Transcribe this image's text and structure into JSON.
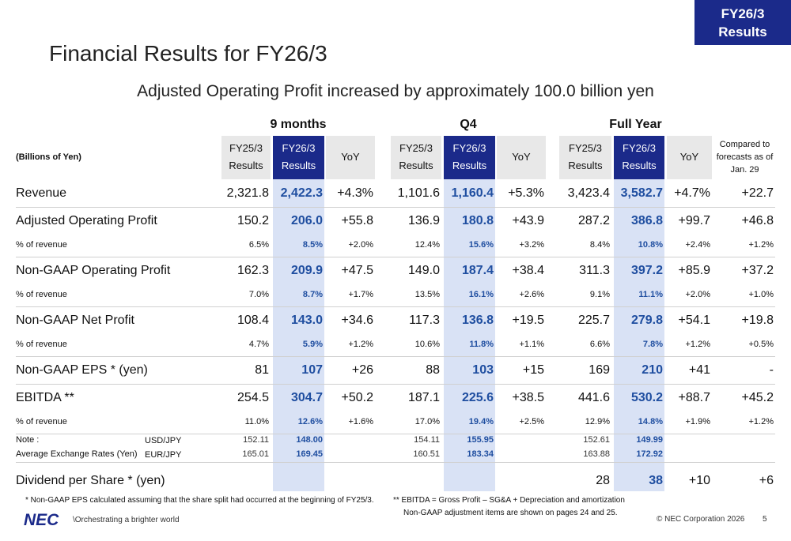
{
  "header": {
    "badge": [
      "FY26/3",
      "Results"
    ],
    "title": "Financial Results for FY26/3",
    "subtitle": "Adjusted Operating Profit increased by approximately 100.0 billion yen"
  },
  "table": {
    "unit": "(Billions of Yen)",
    "groups": [
      "9 months",
      "Q4",
      "Full Year"
    ],
    "column_headers": [
      [
        "FY25/3",
        "Results"
      ],
      [
        "FY26/3",
        "Results"
      ],
      [
        "YoY"
      ],
      [
        "FY25/3",
        "Results"
      ],
      [
        "FY26/3",
        "Results"
      ],
      [
        "YoY"
      ],
      [
        "FY25/3",
        "Results"
      ],
      [
        "FY26/3",
        "Results"
      ],
      [
        "YoY"
      ],
      [
        "Compared to",
        "forecasts as of",
        "Jan. 29"
      ]
    ],
    "rows": [
      {
        "label": "Revenue",
        "style": "main",
        "cells": [
          "2,321.8",
          "2,422.3",
          "+4.3%",
          "1,101.6",
          "1,160.4",
          "+5.3%",
          "3,423.4",
          "3,582.7",
          "+4.7%",
          "+22.7"
        ]
      },
      {
        "label": "Adjusted Operating Profit",
        "style": "main",
        "cells": [
          "150.2",
          "206.0",
          "+55.8",
          "136.9",
          "180.8",
          "+43.9",
          "287.2",
          "386.8",
          "+99.7",
          "+46.8"
        ]
      },
      {
        "label": "% of revenue",
        "style": "sub",
        "cells": [
          "6.5%",
          "8.5%",
          "+2.0%",
          "12.4%",
          "15.6%",
          "+3.2%",
          "8.4%",
          "10.8%",
          "+2.4%",
          "+1.2%"
        ]
      },
      {
        "label": "Non-GAAP Operating Profit",
        "style": "main",
        "cells": [
          "162.3",
          "209.9",
          "+47.5",
          "149.0",
          "187.4",
          "+38.4",
          "311.3",
          "397.2",
          "+85.9",
          "+37.2"
        ]
      },
      {
        "label": "% of revenue",
        "style": "sub",
        "cells": [
          "7.0%",
          "8.7%",
          "+1.7%",
          "13.5%",
          "16.1%",
          "+2.6%",
          "9.1%",
          "11.1%",
          "+2.0%",
          "+1.0%"
        ]
      },
      {
        "label": "Non-GAAP Net Profit",
        "style": "main",
        "cells": [
          "108.4",
          "143.0",
          "+34.6",
          "117.3",
          "136.8",
          "+19.5",
          "225.7",
          "279.8",
          "+54.1",
          "+19.8"
        ]
      },
      {
        "label": "% of revenue",
        "style": "sub",
        "cells": [
          "4.7%",
          "5.9%",
          "+1.2%",
          "10.6%",
          "11.8%",
          "+1.1%",
          "6.6%",
          "7.8%",
          "+1.2%",
          "+0.5%"
        ]
      },
      {
        "label": "Non-GAAP EPS * (yen)",
        "style": "main",
        "cells": [
          "81",
          "107",
          "+26",
          "88",
          "103",
          "+15",
          "169",
          "210",
          "+41",
          "-"
        ]
      },
      {
        "label": "EBITDA **",
        "style": "main",
        "cells": [
          "254.5",
          "304.7",
          "+50.2",
          "187.1",
          "225.6",
          "+38.5",
          "441.6",
          "530.2",
          "+88.7",
          "+45.2"
        ]
      },
      {
        "label": "% of revenue",
        "style": "sub",
        "cells": [
          "11.0%",
          "12.6%",
          "+1.6%",
          "17.0%",
          "19.4%",
          "+2.5%",
          "12.9%",
          "14.8%",
          "+1.9%",
          "+1.2%"
        ]
      },
      {
        "label": "Note :",
        "sublabel": "USD/JPY",
        "style": "note",
        "cells": [
          "152.11",
          "148.00",
          null,
          "154.11",
          "155.95",
          null,
          "152.61",
          "149.99",
          null,
          null
        ]
      },
      {
        "label": "Average Exchange Rates (Yen)",
        "sublabel": "EUR/JPY",
        "style": "note",
        "cells": [
          "165.01",
          "169.45",
          null,
          "160.51",
          "183.34",
          null,
          "163.88",
          "172.92",
          null,
          null
        ]
      },
      {
        "label": "Dividend per Share * (yen)",
        "style": "main",
        "cells": [
          null,
          null,
          null,
          null,
          null,
          null,
          "28",
          "38",
          "+10",
          "+6"
        ]
      }
    ]
  },
  "footnotes": {
    "left": "* Non-GAAP EPS calculated assuming that the share split had occurred at the beginning of FY25/3.",
    "right": [
      "** EBITDA = Gross Profit – SG&A + Depreciation and amortization",
      "Non-GAAP adjustment items are shown on pages 24 and 25."
    ]
  },
  "footer": {
    "logo": "NEC",
    "tagline": "\\Orchestrating a brighter world",
    "copyright": "© NEC Corporation 2026",
    "page": "5"
  }
}
